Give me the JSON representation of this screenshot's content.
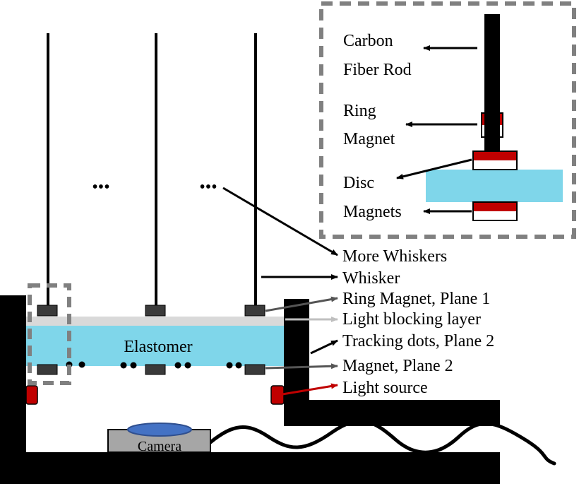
{
  "labels": {
    "carbon_line1": "Carbon",
    "carbon_line2": "Fiber Rod",
    "ring_line1": "Ring",
    "ring_line2": "Magnet",
    "disc_line1": "Disc",
    "disc_line2": "Magnets",
    "more_whiskers": "More Whiskers",
    "whisker": "Whisker",
    "ring_plane1": "Ring Magnet, Plane 1",
    "light_blocking": "Light blocking layer",
    "tracking_dots": "Tracking dots, Plane 2",
    "magnet_plane2": "Magnet, Plane 2",
    "light_source": "Light source",
    "elastomer": "Elastomer",
    "camera": "Camera",
    "ellipsis_left": "•••",
    "ellipsis_right": "•••"
  },
  "colors": {
    "elastomer": "#7fd6ea",
    "light_block": "#d9d9d9",
    "magnet": "#3a3a3a",
    "inset_magnet_red": "#c00000",
    "light_source": "#c00000",
    "camera_body": "#a6a6a6",
    "camera_lens": "#4472c4",
    "dashed_box": "#808080"
  }
}
